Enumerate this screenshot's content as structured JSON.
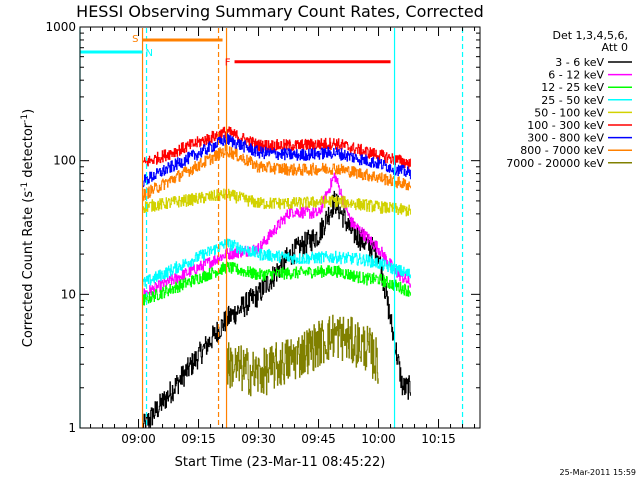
{
  "chart_data": {
    "type": "line",
    "title": "HESSI Observing Summary Count Rates, Corrected",
    "xlabel": "Start Time (23-Mar-11 08:45:22)",
    "ylabel_main": "Corrected Count Rate (s",
    "ylabel_sup1": "-1",
    "ylabel_mid": " detector",
    "ylabel_sup2": "-1",
    "ylabel_end": ")",
    "xlim": [
      "08:45:22",
      "10:25:22"
    ],
    "ylim": [
      1,
      1000
    ],
    "yscale": "log",
    "x_ticks": [
      "09:00",
      "09:15",
      "09:30",
      "09:45",
      "10:00",
      "10:15"
    ],
    "y_ticks": [
      "1",
      "10",
      "100",
      "1000"
    ],
    "grid": false,
    "legend_position": "right",
    "legend_header": [
      "Det 1,3,4,5,6,",
      "Att 0"
    ],
    "footer_date": "25-Mar-2011 15:59",
    "series": [
      {
        "name": "3 - 6 keV",
        "color": "#000000",
        "x": [
          "09:01",
          "09:22",
          "09:30",
          "09:38",
          "09:45",
          "09:49",
          "09:53",
          "10:00",
          "10:06",
          "10:08"
        ],
        "values": [
          1,
          6.5,
          10,
          20,
          28,
          50,
          30,
          20,
          2,
          2
        ]
      },
      {
        "name": "6 - 12 keV",
        "color": "#ff00ff",
        "x": [
          "09:01",
          "09:22",
          "09:30",
          "09:38",
          "09:45",
          "09:49",
          "09:53",
          "10:00",
          "10:04",
          "10:08"
        ],
        "values": [
          10,
          20,
          22,
          42,
          40,
          78,
          35,
          22,
          15,
          12
        ]
      },
      {
        "name": "12 - 25 keV",
        "color": "#00ff00",
        "x": [
          "09:01",
          "09:22",
          "09:30",
          "09:40",
          "09:49",
          "09:57",
          "10:00",
          "10:08"
        ],
        "values": [
          9,
          16,
          14,
          14.5,
          15,
          13,
          13,
          10.5
        ]
      },
      {
        "name": "25 - 50 keV",
        "color": "#00ffff",
        "x": [
          "09:01",
          "09:22",
          "09:30",
          "09:40",
          "09:49",
          "09:57",
          "10:00",
          "10:08"
        ],
        "values": [
          12,
          24,
          20,
          18.5,
          19,
          18,
          17,
          14
        ]
      },
      {
        "name": "50 - 100 keV",
        "color": "#d2d200",
        "x": [
          "09:01",
          "09:22",
          "09:30",
          "09:40",
          "09:49",
          "10:00",
          "10:08"
        ],
        "values": [
          45,
          56,
          48,
          48,
          50,
          45,
          42
        ]
      },
      {
        "name": "100 - 300 keV",
        "color": "#ff0000",
        "x": [
          "09:01",
          "09:22",
          "09:30",
          "09:40",
          "09:49",
          "10:00",
          "10:08"
        ],
        "values": [
          95,
          165,
          130,
          130,
          135,
          110,
          95
        ]
      },
      {
        "name": "300 - 800 keV",
        "color": "#0000ff",
        "x": [
          "09:01",
          "09:22",
          "09:30",
          "09:40",
          "09:49",
          "10:00",
          "10:08"
        ],
        "values": [
          70,
          145,
          115,
          110,
          115,
          95,
          80
        ]
      },
      {
        "name": "800 - 7000 keV",
        "color": "#ff8000",
        "x": [
          "09:01",
          "09:22",
          "09:30",
          "09:40",
          "09:49",
          "10:00",
          "10:08"
        ],
        "values": [
          55,
          120,
          90,
          85,
          88,
          75,
          65
        ]
      },
      {
        "name": "7000 - 20000 keV",
        "color": "#808000",
        "x": [
          "09:22",
          "09:30",
          "09:40",
          "09:49",
          "09:57",
          "10:00"
        ],
        "values": [
          3,
          2.5,
          3.5,
          5,
          4,
          3
        ]
      }
    ],
    "flag_bars": [
      {
        "label": "S",
        "color": "#ff8000",
        "start": "09:01",
        "end": "09:21",
        "level": 800
      },
      {
        "label": "N",
        "color": "#00ffff",
        "start": "08:45:22",
        "end": "09:01",
        "level": 650
      },
      {
        "label": "F",
        "color": "#ff0000",
        "start": "09:24",
        "end": "10:03",
        "level": 550
      }
    ],
    "markers": [
      {
        "time": "08:45:22",
        "color": "#00ffff",
        "style": "solid"
      },
      {
        "time": "09:01",
        "color": "#ff8000",
        "style": "solid"
      },
      {
        "time": "09:02",
        "color": "#00ffff",
        "style": "dashed"
      },
      {
        "time": "09:20",
        "color": "#ff8000",
        "style": "dashed"
      },
      {
        "time": "09:22",
        "color": "#ff8000",
        "style": "solid"
      },
      {
        "time": "10:04",
        "color": "#00ffff",
        "style": "solid"
      },
      {
        "time": "10:21",
        "color": "#00ffff",
        "style": "dashed"
      }
    ]
  }
}
